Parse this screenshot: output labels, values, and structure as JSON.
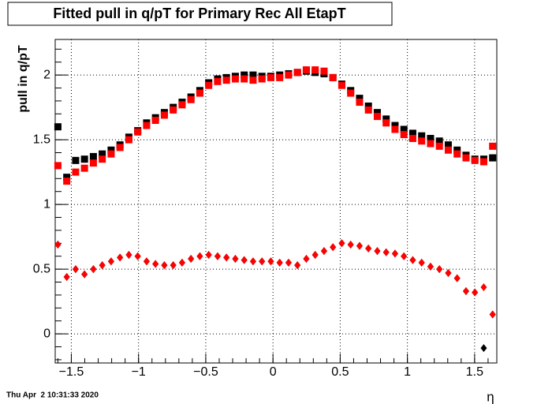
{
  "chart_data": {
    "type": "scatter",
    "title": "Fitted pull in q/pT for Primary Rec All EtapT",
    "y_label": "pull in q/pT",
    "x_label": "η",
    "footer": "Thu Apr  2 10:31:33 2020",
    "grid": true,
    "xlim": [
      -1.62,
      1.665
    ],
    "ylim": [
      -0.225,
      2.275
    ],
    "xticks": [
      {
        "value": -1.5,
        "label": "−1.5"
      },
      {
        "value": -1,
        "label": "−1"
      },
      {
        "value": -0.5,
        "label": "−0.5"
      },
      0,
      0.5,
      1,
      1.5
    ],
    "yticks": [
      0,
      0.5,
      1,
      1.5,
      2
    ],
    "x": [
      -1.6,
      -1.534,
      -1.468,
      -1.402,
      -1.336,
      -1.27,
      -1.204,
      -1.138,
      -1.072,
      -1.006,
      -0.94,
      -0.874,
      -0.808,
      -0.742,
      -0.676,
      -0.61,
      -0.544,
      -0.478,
      -0.412,
      -0.346,
      -0.28,
      -0.214,
      -0.148,
      -0.082,
      -0.016,
      0.05,
      0.116,
      0.182,
      0.248,
      0.314,
      0.38,
      0.446,
      0.512,
      0.578,
      0.644,
      0.71,
      0.776,
      0.842,
      0.908,
      0.974,
      1.04,
      1.106,
      1.172,
      1.238,
      1.304,
      1.37,
      1.436,
      1.502,
      1.568,
      1.634
    ],
    "series": [
      {
        "color": "#000000",
        "marker": "square",
        "values": [
          1.6,
          1.21,
          1.34,
          1.35,
          1.37,
          1.39,
          1.42,
          1.46,
          1.52,
          1.57,
          1.63,
          1.67,
          1.71,
          1.75,
          1.79,
          1.83,
          1.88,
          1.94,
          1.97,
          1.98,
          1.99,
          2.0,
          2.0,
          1.99,
          1.99,
          2.0,
          2.01,
          2.02,
          2.03,
          2.02,
          2.01,
          1.98,
          1.93,
          1.88,
          1.82,
          1.76,
          1.71,
          1.66,
          1.61,
          1.58,
          1.55,
          1.53,
          1.51,
          1.49,
          1.46,
          1.42,
          1.38,
          1.35,
          1.35,
          1.36
        ]
      },
      {
        "color": "#ff0000",
        "marker": "square",
        "values": [
          1.3,
          1.18,
          1.25,
          1.28,
          1.32,
          1.35,
          1.39,
          1.44,
          1.5,
          1.56,
          1.61,
          1.65,
          1.69,
          1.73,
          1.77,
          1.81,
          1.86,
          1.92,
          1.95,
          1.96,
          1.97,
          1.97,
          1.96,
          1.97,
          1.98,
          1.98,
          2.0,
          2.02,
          2.04,
          2.04,
          2.03,
          1.98,
          1.92,
          1.86,
          1.79,
          1.73,
          1.68,
          1.63,
          1.58,
          1.54,
          1.51,
          1.49,
          1.47,
          1.45,
          1.42,
          1.39,
          1.36,
          1.34,
          1.33,
          1.45
        ]
      },
      {
        "color": "#000000",
        "marker": "diamond",
        "values": [
          0.69,
          0.44,
          0.5,
          0.46,
          0.5,
          0.53,
          0.56,
          0.59,
          0.61,
          0.6,
          0.56,
          0.54,
          0.53,
          0.53,
          0.55,
          0.58,
          0.6,
          0.61,
          0.6,
          0.59,
          0.58,
          0.57,
          0.56,
          0.56,
          0.56,
          0.55,
          0.55,
          0.53,
          0.58,
          0.61,
          0.64,
          0.67,
          0.7,
          0.69,
          0.68,
          0.66,
          0.64,
          0.63,
          0.62,
          0.6,
          0.57,
          0.55,
          0.52,
          0.5,
          0.47,
          0.43,
          0.33,
          0.32,
          -0.11,
          0.15
        ]
      },
      {
        "color": "#ff0000",
        "marker": "diamond",
        "values": [
          0.69,
          0.44,
          0.5,
          0.46,
          0.5,
          0.53,
          0.56,
          0.59,
          0.61,
          0.6,
          0.56,
          0.54,
          0.53,
          0.53,
          0.55,
          0.58,
          0.6,
          0.61,
          0.6,
          0.59,
          0.58,
          0.57,
          0.56,
          0.56,
          0.56,
          0.55,
          0.55,
          0.53,
          0.58,
          0.61,
          0.64,
          0.67,
          0.7,
          0.69,
          0.68,
          0.66,
          0.64,
          0.63,
          0.62,
          0.6,
          0.57,
          0.55,
          0.52,
          0.5,
          0.47,
          0.43,
          0.33,
          0.32,
          0.36,
          0.15
        ]
      }
    ]
  }
}
